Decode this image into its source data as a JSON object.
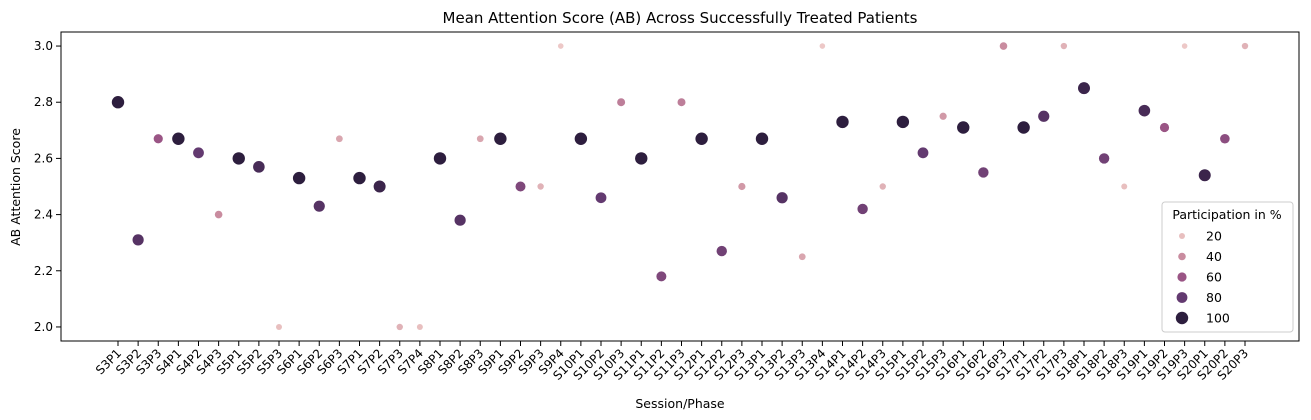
{
  "chart_data": {
    "type": "scatter",
    "title": "Mean Attention Score (AB) Across Successfully Treated Patients",
    "xlabel": "Session/Phase",
    "ylabel": "AB Attention Score",
    "ylim": [
      1.95,
      3.05
    ],
    "yticks": [
      "2.0",
      "2.2",
      "2.4",
      "2.6",
      "2.8",
      "3.0"
    ],
    "legend": {
      "title": "Participation in %",
      "placement": "lower-right",
      "entries": [
        "20",
        "40",
        "60",
        "80",
        "100"
      ]
    },
    "colors": {
      "p20": "#e8bfbf",
      "p40": "#c98c9f",
      "p60": "#9a5585",
      "p80": "#633a70",
      "p100": "#2d1e3e"
    },
    "categories": [
      "S3P1",
      "S3P2",
      "S3P3",
      "S4P1",
      "S4P2",
      "S4P3",
      "S5P1",
      "S5P2",
      "S5P3",
      "S6P1",
      "S6P2",
      "S6P3",
      "S7P1",
      "S7P2",
      "S7P3",
      "S7P4",
      "S8P1",
      "S8P2",
      "S8P3",
      "S9P1",
      "S9P2",
      "S9P3",
      "S9P4",
      "S10P1",
      "S10P2",
      "S10P3",
      "S11P1",
      "S11P2",
      "S11P3",
      "S12P1",
      "S12P2",
      "S12P3",
      "S13P1",
      "S13P2",
      "S13P3",
      "S13P4",
      "S14P1",
      "S14P2",
      "S14P3",
      "S15P1",
      "S15P2",
      "S15P3",
      "S16P1",
      "S16P2",
      "S16P3",
      "S17P1",
      "S17P2",
      "S17P3",
      "S18P1",
      "S18P2",
      "S18P3",
      "S19P1",
      "S19P2",
      "S19P3",
      "S20P1",
      "S20P2",
      "S20P3"
    ],
    "values": [
      2.8,
      2.31,
      2.67,
      2.67,
      2.62,
      2.4,
      2.6,
      2.57,
      2.0,
      2.53,
      2.43,
      2.67,
      2.53,
      2.5,
      2.0,
      2.0,
      2.6,
      2.38,
      2.67,
      2.67,
      2.5,
      2.5,
      3.0,
      2.67,
      2.46,
      2.8,
      2.6,
      2.18,
      2.8,
      2.67,
      2.27,
      2.5,
      2.67,
      2.46,
      2.25,
      3.0,
      2.73,
      2.42,
      2.5,
      2.73,
      2.62,
      2.75,
      2.71,
      2.55,
      3.0,
      2.71,
      2.75,
      3.0,
      2.85,
      2.6,
      2.5,
      2.77,
      2.71,
      3.0,
      2.54,
      2.67,
      3.0
    ],
    "participation": [
      100,
      85,
      60,
      100,
      80,
      40,
      100,
      90,
      20,
      100,
      85,
      30,
      100,
      95,
      25,
      20,
      100,
      85,
      30,
      100,
      70,
      25,
      15,
      100,
      80,
      45,
      100,
      70,
      45,
      100,
      75,
      35,
      100,
      85,
      30,
      15,
      100,
      75,
      25,
      100,
      80,
      35,
      100,
      75,
      40,
      100,
      85,
      25,
      95,
      75,
      20,
      90,
      60,
      15,
      95,
      65,
      25
    ]
  }
}
